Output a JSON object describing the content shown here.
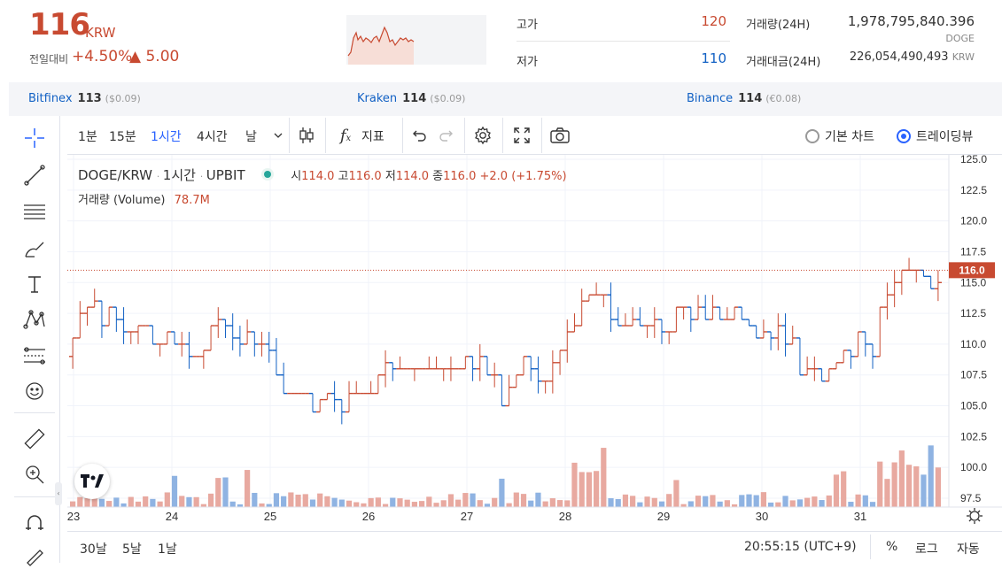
{
  "header": {
    "price": "116",
    "price_unit": "KRW",
    "change_label": "전일대비",
    "change_pct": "+4.50%",
    "change_amt": "▲ 5.00",
    "high_label": "고가",
    "high_value": "120",
    "low_label": "저가",
    "low_value": "110",
    "volume_label": "거래량(24H)",
    "volume_value": "1,978,795,840.396",
    "volume_unit": "DOGE",
    "trade_amount_label": "거래대금(24H)",
    "trade_amount_value": "226,054,490,493",
    "trade_amount_unit": "KRW"
  },
  "exchanges": [
    {
      "name": "Bitfinex",
      "price": "113",
      "delta": "($0.09)"
    },
    {
      "name": "Kraken",
      "price": "114",
      "delta": "($0.09)"
    },
    {
      "name": "Binance",
      "price": "114",
      "delta": "(€0.08)"
    }
  ],
  "toolbar": {
    "timeframes": [
      "1분",
      "15분",
      "1시간",
      "4시간",
      "날"
    ],
    "active_timeframe": "1시간",
    "indicators_label": "지표",
    "basic_chart_label": "기본 차트",
    "trading_view_label": "트레이딩뷰"
  },
  "legend": {
    "symbol": "DOGE/KRW",
    "interval": "1시간",
    "exchange": "UPBIT",
    "open_label": "시",
    "open": "114.0",
    "high_label": "고",
    "high": "116.0",
    "low_label": "저",
    "low": "114.0",
    "close_label": "종",
    "close": "116.0",
    "change": "+2.0 (+1.75%)",
    "volume_label": "거래량 (Volume)",
    "volume_value": "78.7M"
  },
  "chart_data": {
    "type": "bar",
    "title": "DOGE/KRW · 1시간 · UPBIT",
    "x_labels": [
      "23",
      "24",
      "25",
      "26",
      "27",
      "28",
      "29",
      "30",
      "31"
    ],
    "y_ticks": [
      "125.0",
      "122.5",
      "120.0",
      "117.5",
      "115.0",
      "112.5",
      "110.0",
      "107.5",
      "105.0",
      "102.5",
      "100.0",
      "97.5"
    ],
    "ylim": [
      97.5,
      125.0
    ],
    "last_price_label": "116.0",
    "close_path": [
      [
        0,
        109
      ],
      [
        3,
        114
      ],
      [
        6,
        112
      ],
      [
        9,
        112
      ],
      [
        12,
        110
      ],
      [
        15,
        110
      ],
      [
        18,
        110
      ],
      [
        21,
        112
      ],
      [
        24,
        110
      ],
      [
        27,
        110
      ],
      [
        30,
        106
      ],
      [
        33,
        106
      ],
      [
        36,
        105
      ],
      [
        39,
        106
      ],
      [
        42,
        106
      ],
      [
        45,
        108
      ],
      [
        48,
        108
      ],
      [
        51,
        108
      ],
      [
        54,
        108
      ],
      [
        57,
        108
      ],
      [
        60,
        106
      ],
      [
        63,
        108
      ],
      [
        66,
        108
      ],
      [
        69,
        110
      ],
      [
        72,
        115
      ],
      [
        75,
        112
      ],
      [
        78,
        111
      ],
      [
        81,
        112
      ],
      [
        84,
        112
      ],
      [
        87,
        112
      ],
      [
        90,
        112
      ],
      [
        93,
        112
      ],
      [
        96,
        111
      ],
      [
        99,
        110
      ],
      [
        102,
        108
      ],
      [
        105,
        108
      ],
      [
        108,
        110
      ],
      [
        111,
        110
      ],
      [
        114,
        116
      ],
      [
        117,
        116
      ],
      [
        120,
        115
      ]
    ],
    "volume_series": "hourly volume bars, peaks near day 28 and day 31"
  },
  "bottom": {
    "ranges": [
      "30날",
      "5날",
      "1날"
    ],
    "clock": "20:55:15 (UTC+9)",
    "percent": "%",
    "log": "로그",
    "auto": "자동"
  }
}
